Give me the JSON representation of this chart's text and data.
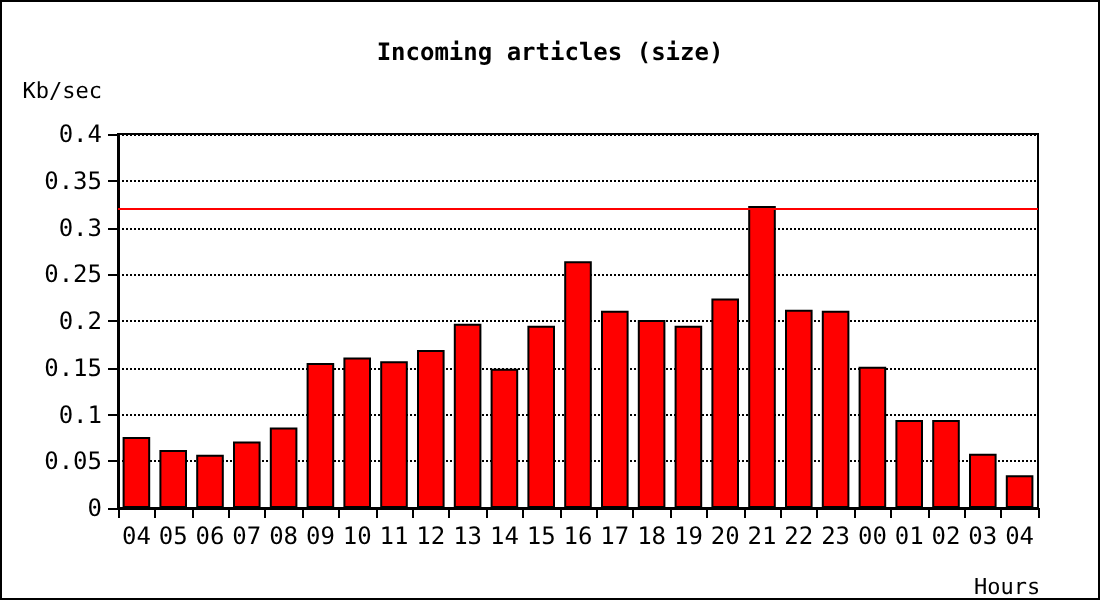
{
  "chart_data": {
    "type": "bar",
    "title": "Incoming articles (size)",
    "xlabel": "Hours",
    "ylabel": "Kb/sec",
    "categories": [
      "04",
      "05",
      "06",
      "07",
      "08",
      "09",
      "10",
      "11",
      "12",
      "13",
      "14",
      "15",
      "16",
      "17",
      "18",
      "19",
      "20",
      "21",
      "22",
      "23",
      "00",
      "01",
      "02",
      "03",
      "04"
    ],
    "values": [
      0.076,
      0.062,
      0.057,
      0.071,
      0.086,
      0.155,
      0.161,
      0.157,
      0.169,
      0.197,
      0.149,
      0.195,
      0.264,
      0.211,
      0.201,
      0.195,
      0.224,
      0.323,
      0.212,
      0.211,
      0.151,
      0.094,
      0.094,
      0.058,
      0.035
    ],
    "color": "#ff0000",
    "ylim": [
      0,
      0.4
    ],
    "yticks": [
      0,
      0.05,
      0.1,
      0.15,
      0.2,
      0.25,
      0.3,
      0.35,
      0.4
    ],
    "grid": "y",
    "ref_lines": [
      {
        "axis": "y",
        "value": 0.323,
        "color": "#ff0000",
        "line_style": "solid"
      }
    ]
  }
}
